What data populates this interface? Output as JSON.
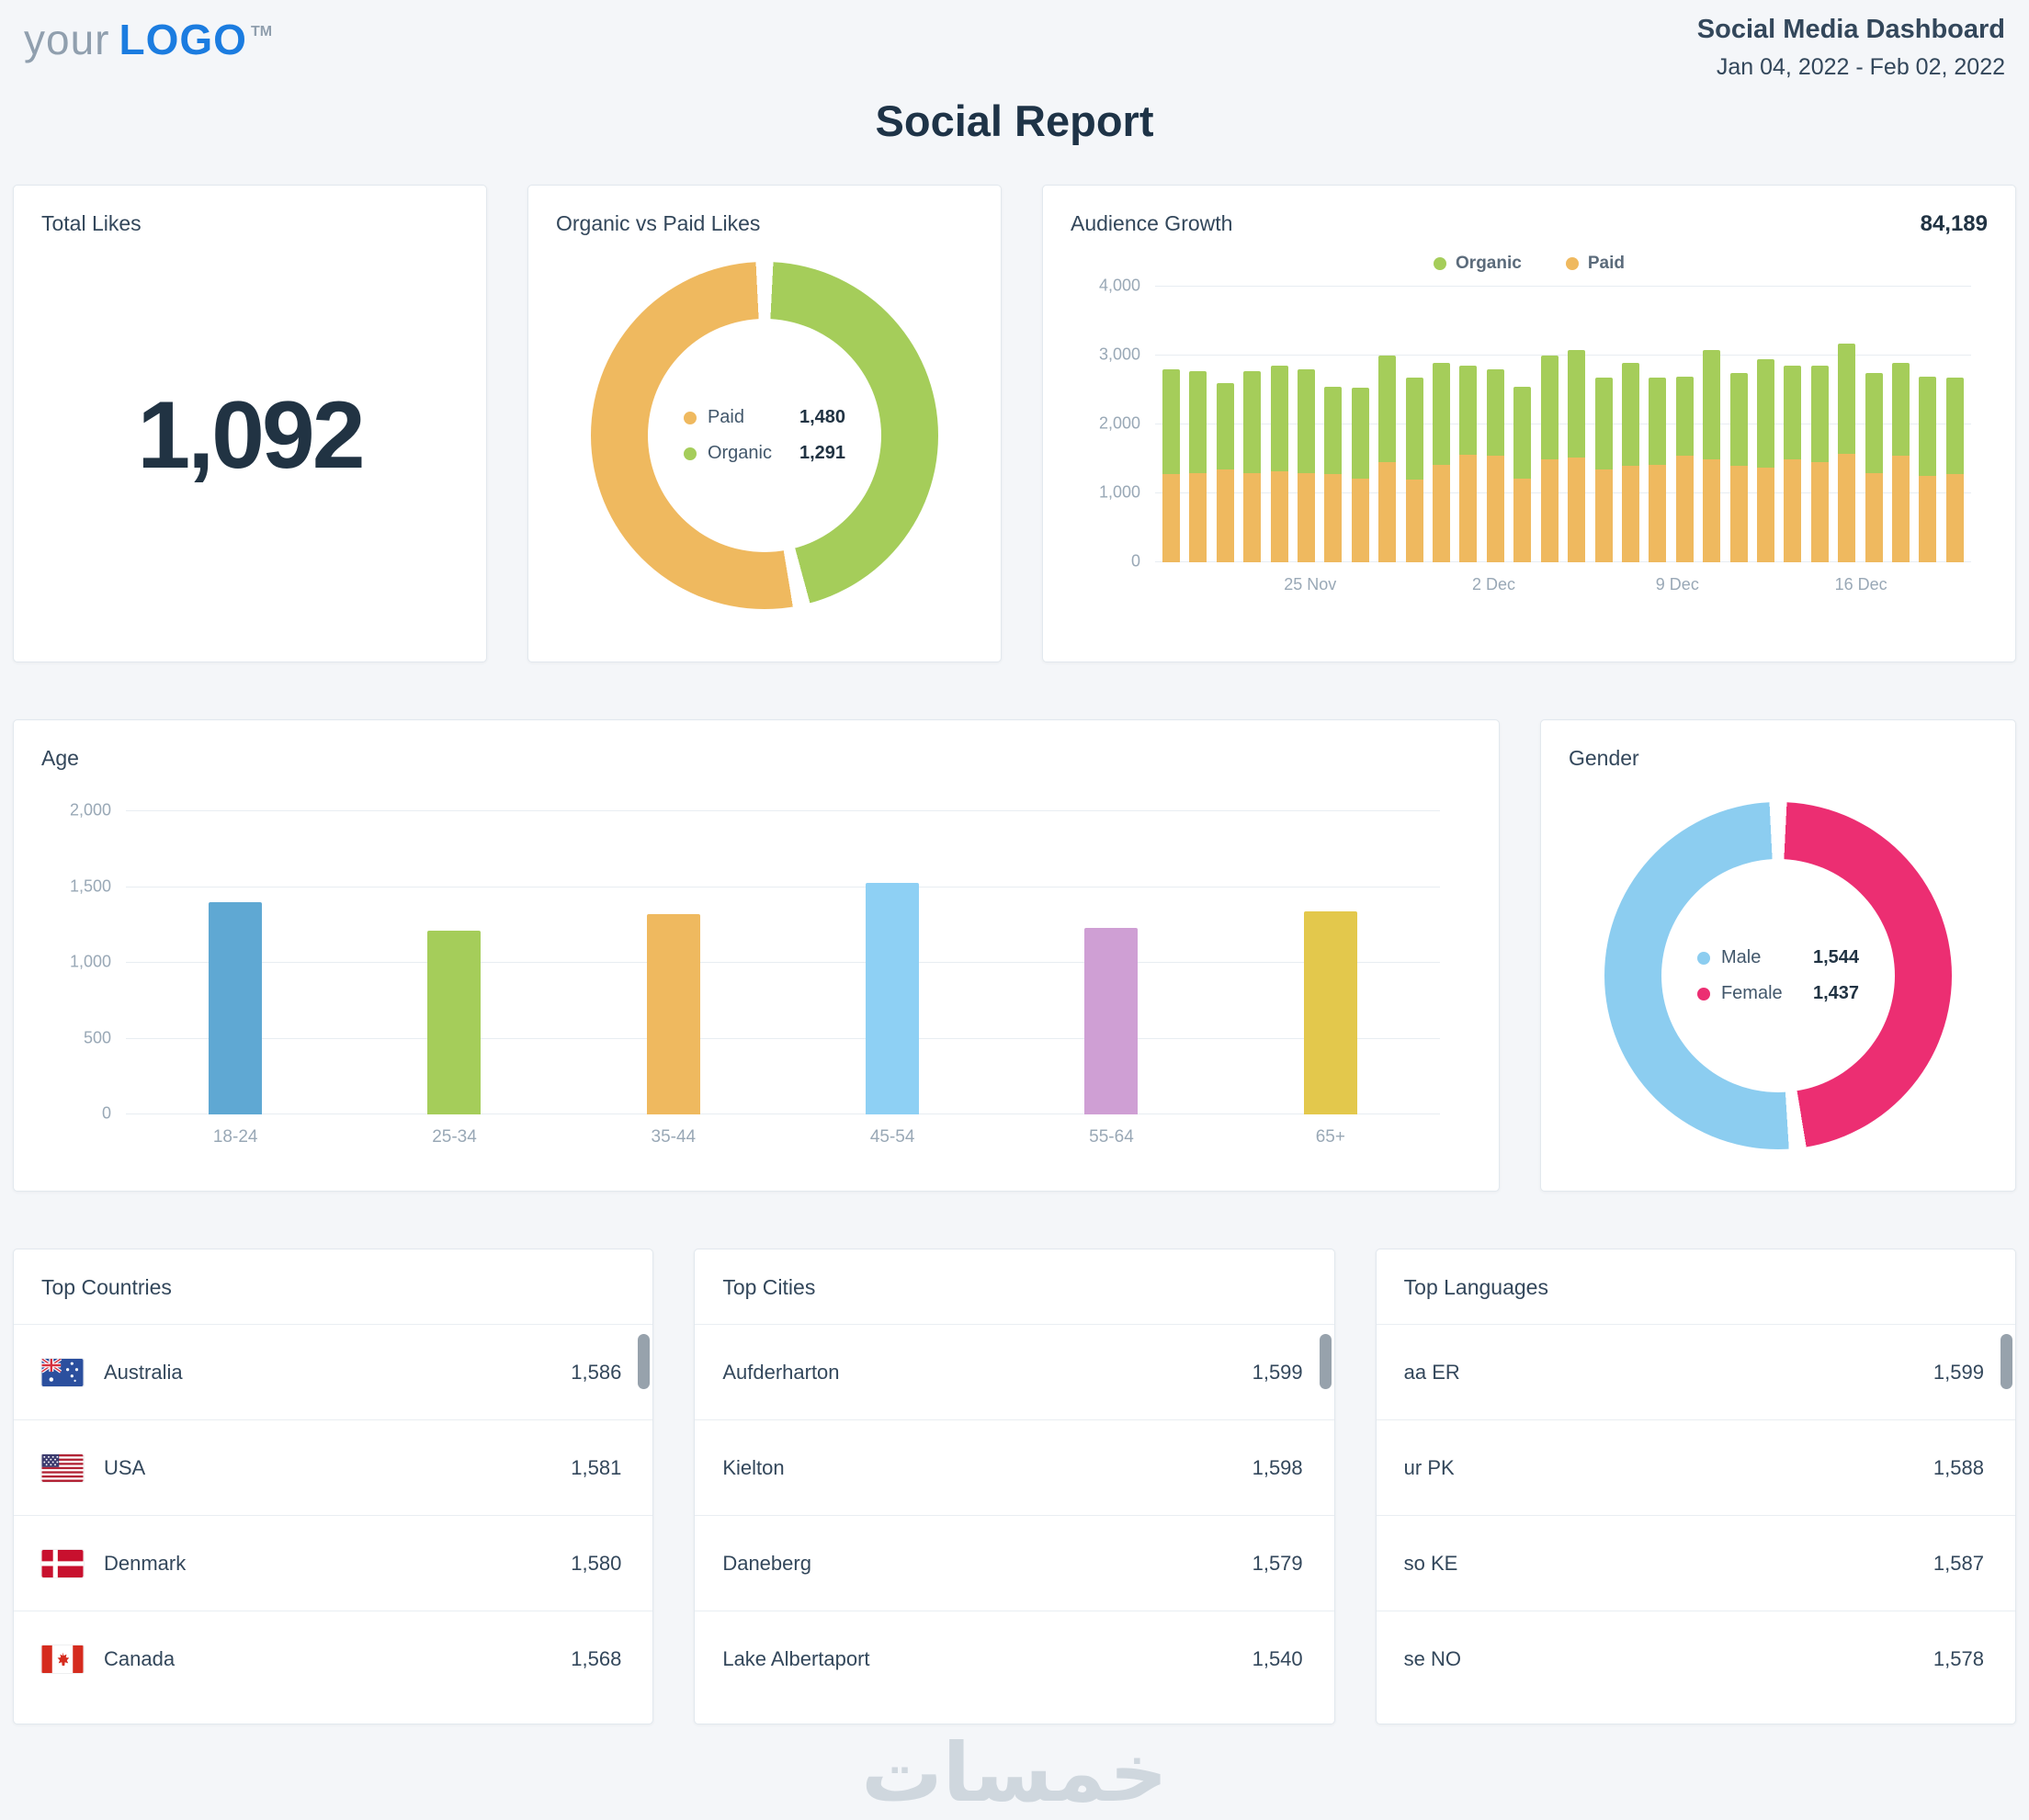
{
  "header": {
    "logo_your": "your",
    "logo_main": "LOGO",
    "logo_tm": "TM",
    "dashboard_title": "Social Media Dashboard",
    "date_range": "Jan 04, 2022 - Feb 02, 2022",
    "report_title": "Social Report"
  },
  "cards": {
    "total_likes": {
      "title": "Total Likes",
      "value": "1,092"
    },
    "organic_vs_paid": {
      "title": "Organic vs Paid Likes"
    },
    "audience_growth": {
      "title": "Audience Growth",
      "total": "84,189"
    },
    "age": {
      "title": "Age"
    },
    "gender": {
      "title": "Gender"
    },
    "top_countries": {
      "title": "Top Countries"
    },
    "top_cities": {
      "title": "Top Cities"
    },
    "top_languages": {
      "title": "Top Languages"
    }
  },
  "colors": {
    "organic": "#a5cd5a",
    "paid": "#efb95f",
    "male": "#8ccdf0",
    "female": "#ec2e72",
    "accent_blue": "#1b7ce0"
  },
  "chart_data": [
    {
      "id": "organic_vs_paid",
      "type": "pie",
      "title": "Organic vs Paid Likes",
      "segments": [
        {
          "label": "Organic",
          "value": 1291,
          "color": "#a5cd5a"
        },
        {
          "label": "Paid",
          "value": 1480,
          "color": "#efb95f"
        }
      ],
      "legend": [
        {
          "label": "Paid",
          "value": "1,480",
          "color": "#efb95f"
        },
        {
          "label": "Organic",
          "value": "1,291",
          "color": "#a5cd5a"
        }
      ],
      "legend_position": "center"
    },
    {
      "id": "audience_growth",
      "type": "bar",
      "stacked": true,
      "title": "Audience Growth",
      "total_label": "84,189",
      "ylim": [
        0,
        4000
      ],
      "yticks": [
        {
          "v": 0,
          "label": "0"
        },
        {
          "v": 1000,
          "label": "1,000"
        },
        {
          "v": 2000,
          "label": "2,000"
        },
        {
          "v": 3000,
          "label": "3,000"
        },
        {
          "v": 4000,
          "label": "4,000"
        }
      ],
      "xticks": [
        {
          "label": "25 Nov",
          "pos": 0.19
        },
        {
          "label": "2 Dec",
          "pos": 0.415
        },
        {
          "label": "9 Dec",
          "pos": 0.64
        },
        {
          "label": "16 Dec",
          "pos": 0.865
        }
      ],
      "legend": [
        {
          "label": "Organic",
          "color": "#a5cd5a"
        },
        {
          "label": "Paid",
          "color": "#efb95f"
        }
      ],
      "series": [
        {
          "name": "Paid",
          "color": "#efb95f",
          "values": [
            1280,
            1300,
            1350,
            1300,
            1320,
            1300,
            1280,
            1220,
            1450,
            1200,
            1420,
            1560,
            1550,
            1220,
            1500,
            1520,
            1350,
            1400,
            1420,
            1550,
            1500,
            1400,
            1380,
            1500,
            1450,
            1580,
            1300,
            1550,
            1250,
            1280
          ]
        },
        {
          "name": "Organic",
          "color": "#a5cd5a",
          "values": [
            1520,
            1480,
            1250,
            1480,
            1530,
            1500,
            1270,
            1310,
            1550,
            1480,
            1480,
            1290,
            1250,
            1330,
            1500,
            1560,
            1330,
            1500,
            1260,
            1150,
            1580,
            1350,
            1570,
            1350,
            1400,
            1600,
            1450,
            1350,
            1450,
            1400
          ]
        }
      ]
    },
    {
      "id": "age",
      "type": "bar",
      "title": "Age",
      "categories": [
        "18-24",
        "25-34",
        "35-44",
        "45-54",
        "55-64",
        "65+"
      ],
      "values": [
        1400,
        1210,
        1320,
        1530,
        1230,
        1340
      ],
      "colors": [
        "#5fa8d3",
        "#a5cd5a",
        "#efb95f",
        "#8ed0f4",
        "#cf9fd4",
        "#e3c84c"
      ],
      "ylim": [
        0,
        2000
      ],
      "yticks": [
        {
          "v": 0,
          "label": "0"
        },
        {
          "v": 500,
          "label": "500"
        },
        {
          "v": 1000,
          "label": "1,000"
        },
        {
          "v": 1500,
          "label": "1,500"
        },
        {
          "v": 2000,
          "label": "2,000"
        }
      ]
    },
    {
      "id": "gender",
      "type": "pie",
      "title": "Gender",
      "segments": [
        {
          "label": "Female",
          "value": 1437,
          "color": "#ec2e72"
        },
        {
          "label": "Male",
          "value": 1544,
          "color": "#8ccdf0"
        }
      ],
      "legend": [
        {
          "label": "Male",
          "value": "1,544",
          "color": "#8ccdf0"
        },
        {
          "label": "Female",
          "value": "1,437",
          "color": "#ec2e72"
        }
      ],
      "legend_position": "center"
    }
  ],
  "lists": {
    "top_countries": [
      {
        "name": "Australia",
        "value": "1,586",
        "flag": "au"
      },
      {
        "name": "USA",
        "value": "1,581",
        "flag": "us"
      },
      {
        "name": "Denmark",
        "value": "1,580",
        "flag": "dk"
      },
      {
        "name": "Canada",
        "value": "1,568",
        "flag": "ca"
      }
    ],
    "top_cities": [
      {
        "name": "Aufderharton",
        "value": "1,599"
      },
      {
        "name": "Kielton",
        "value": "1,598"
      },
      {
        "name": "Daneberg",
        "value": "1,579"
      },
      {
        "name": "Lake Albertaport",
        "value": "1,540"
      }
    ],
    "top_languages": [
      {
        "name": "aa ER",
        "value": "1,599"
      },
      {
        "name": "ur PK",
        "value": "1,588"
      },
      {
        "name": "so KE",
        "value": "1,587"
      },
      {
        "name": "se NO",
        "value": "1,578"
      }
    ]
  },
  "watermark": "خمسات"
}
